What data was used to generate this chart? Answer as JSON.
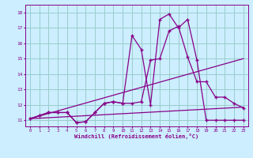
{
  "xlabel": "Windchill (Refroidissement éolien,°C)",
  "bg_color": "#cceeff",
  "grid_color": "#99cccc",
  "line_color": "#880088",
  "x_ticks": [
    0,
    1,
    2,
    3,
    4,
    5,
    6,
    7,
    8,
    9,
    10,
    11,
    12,
    13,
    14,
    15,
    16,
    17,
    18,
    19,
    20,
    21,
    22,
    23
  ],
  "y_ticks": [
    11,
    12,
    13,
    14,
    15,
    16,
    17,
    18
  ],
  "ylim": [
    10.6,
    18.5
  ],
  "xlim": [
    -0.5,
    23.5
  ],
  "series": [
    {
      "x": [
        0,
        1,
        2,
        3,
        4,
        5,
        6,
        7,
        8,
        9,
        10,
        11,
        12,
        13,
        14,
        15,
        16,
        17,
        18,
        19,
        20,
        21,
        22,
        23
      ],
      "y": [
        11.1,
        11.3,
        11.5,
        11.5,
        11.5,
        10.85,
        10.9,
        11.5,
        12.1,
        12.2,
        12.1,
        16.5,
        15.6,
        12.0,
        17.55,
        17.9,
        17.0,
        17.55,
        14.9,
        11.0,
        11.0,
        11.0,
        11.0,
        11.0
      ],
      "marker": "+",
      "markersize": 3.5,
      "linewidth": 0.9
    },
    {
      "x": [
        0,
        1,
        2,
        3,
        4,
        5,
        6,
        7,
        8,
        9,
        10,
        11,
        12,
        13,
        14,
        15,
        16,
        17,
        18,
        19,
        20,
        21,
        22,
        23
      ],
      "y": [
        11.1,
        11.3,
        11.5,
        11.5,
        11.5,
        10.85,
        10.9,
        11.5,
        12.1,
        12.2,
        12.1,
        12.1,
        12.2,
        14.9,
        15.0,
        16.8,
        17.1,
        15.1,
        13.5,
        13.5,
        12.5,
        12.5,
        12.1,
        11.8
      ],
      "marker": "+",
      "markersize": 3.5,
      "linewidth": 0.9
    },
    {
      "x": [
        0,
        23
      ],
      "y": [
        11.1,
        11.85
      ],
      "marker": null,
      "markersize": 0,
      "linewidth": 0.9
    },
    {
      "x": [
        0,
        23
      ],
      "y": [
        11.1,
        15.0
      ],
      "marker": null,
      "markersize": 0,
      "linewidth": 0.9
    }
  ]
}
